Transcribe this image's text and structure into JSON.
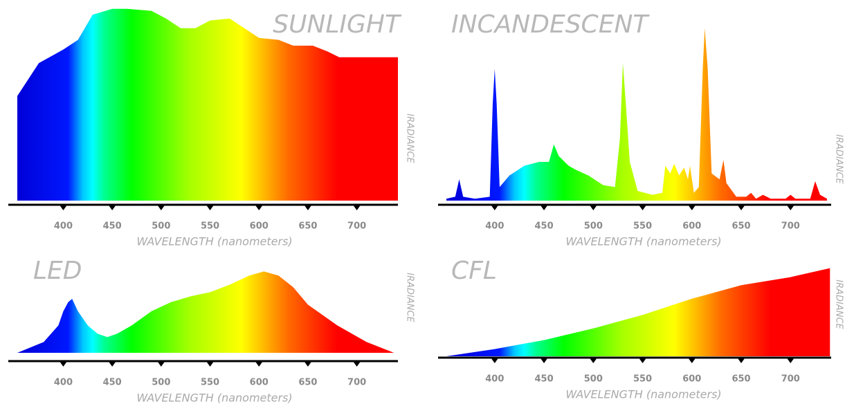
{
  "chart_data": [
    {
      "type": "area",
      "title": "SUNLIGHT",
      "xlabel": "WAVELENGTH (nanometers)",
      "ylabel": "IRADIANCE",
      "x": [
        353,
        375,
        400,
        415,
        430,
        450,
        465,
        490,
        505,
        520,
        535,
        550,
        570,
        585,
        600,
        620,
        635,
        655,
        670,
        682,
        742
      ],
      "values": [
        54,
        71,
        78,
        83,
        96,
        99,
        99,
        98,
        94,
        89,
        89,
        93,
        94,
        89,
        84,
        83,
        80,
        80,
        77,
        74,
        74
      ],
      "xlim": [
        353,
        742
      ],
      "xticks": [
        400,
        450,
        500,
        550,
        600,
        650,
        700
      ],
      "ylim": [
        0,
        100
      ]
    },
    {
      "type": "area",
      "title": "INCANDESCENT",
      "xlabel": "WAVELENGTH (nanometers)",
      "ylabel": "IRADIANCE",
      "x": [
        351,
        360,
        364,
        368,
        380,
        395,
        398,
        400,
        402,
        405,
        415,
        430,
        445,
        455,
        460,
        465,
        475,
        482,
        495,
        510,
        522,
        527,
        530,
        533,
        537,
        545,
        560,
        570,
        573,
        578,
        582,
        587,
        592,
        596,
        598,
        602,
        607,
        611,
        613,
        616,
        620,
        628,
        632,
        635,
        645,
        655,
        660,
        665,
        672,
        680,
        695,
        700,
        705,
        720,
        725,
        730,
        737
      ],
      "values": [
        1,
        2,
        11,
        2,
        1,
        2,
        50,
        68,
        50,
        7,
        13,
        18,
        20,
        20,
        29,
        23,
        18,
        16,
        13,
        8,
        7,
        32,
        71,
        50,
        20,
        5,
        3,
        4,
        18,
        14,
        19,
        13,
        17,
        11,
        18,
        4,
        7,
        68,
        89,
        68,
        14,
        11,
        21,
        9,
        2,
        2,
        4,
        1,
        3,
        1,
        1,
        3,
        1,
        1,
        10,
        3,
        1
      ],
      "xlim": [
        351,
        737
      ],
      "xticks": [
        400,
        450,
        500,
        550,
        600,
        650,
        700
      ],
      "ylim": [
        0,
        100
      ]
    },
    {
      "type": "area",
      "title": "LED",
      "xlabel": "WAVELENGTH (nanometers)",
      "ylabel": "IRADIANCE",
      "x": [
        353,
        380,
        395,
        400,
        405,
        409,
        415,
        425,
        435,
        445,
        455,
        470,
        490,
        510,
        530,
        550,
        570,
        590,
        605,
        620,
        635,
        650,
        680,
        710,
        738
      ],
      "values": [
        0,
        13,
        33,
        50,
        61,
        65,
        50,
        33,
        23,
        19,
        23,
        33,
        50,
        61,
        68,
        73,
        82,
        93,
        98,
        93,
        79,
        58,
        33,
        13,
        0
      ],
      "xlim": [
        353,
        742
      ],
      "xticks": [
        400,
        450,
        500,
        550,
        600,
        650,
        700
      ],
      "ylim": [
        0,
        100
      ]
    },
    {
      "type": "area",
      "title": "CFL",
      "xlabel": "WAVELENGTH (nanometers)",
      "ylabel": "IRADIANCE",
      "x": [
        351,
        400,
        450,
        500,
        550,
        600,
        650,
        700,
        740
      ],
      "values": [
        0,
        8,
        18,
        31,
        46,
        64,
        79,
        88,
        98
      ],
      "xlim": [
        351,
        737
      ],
      "xticks": [
        400,
        450,
        500,
        550,
        600,
        650,
        700
      ],
      "ylim": [
        0,
        100
      ]
    }
  ]
}
